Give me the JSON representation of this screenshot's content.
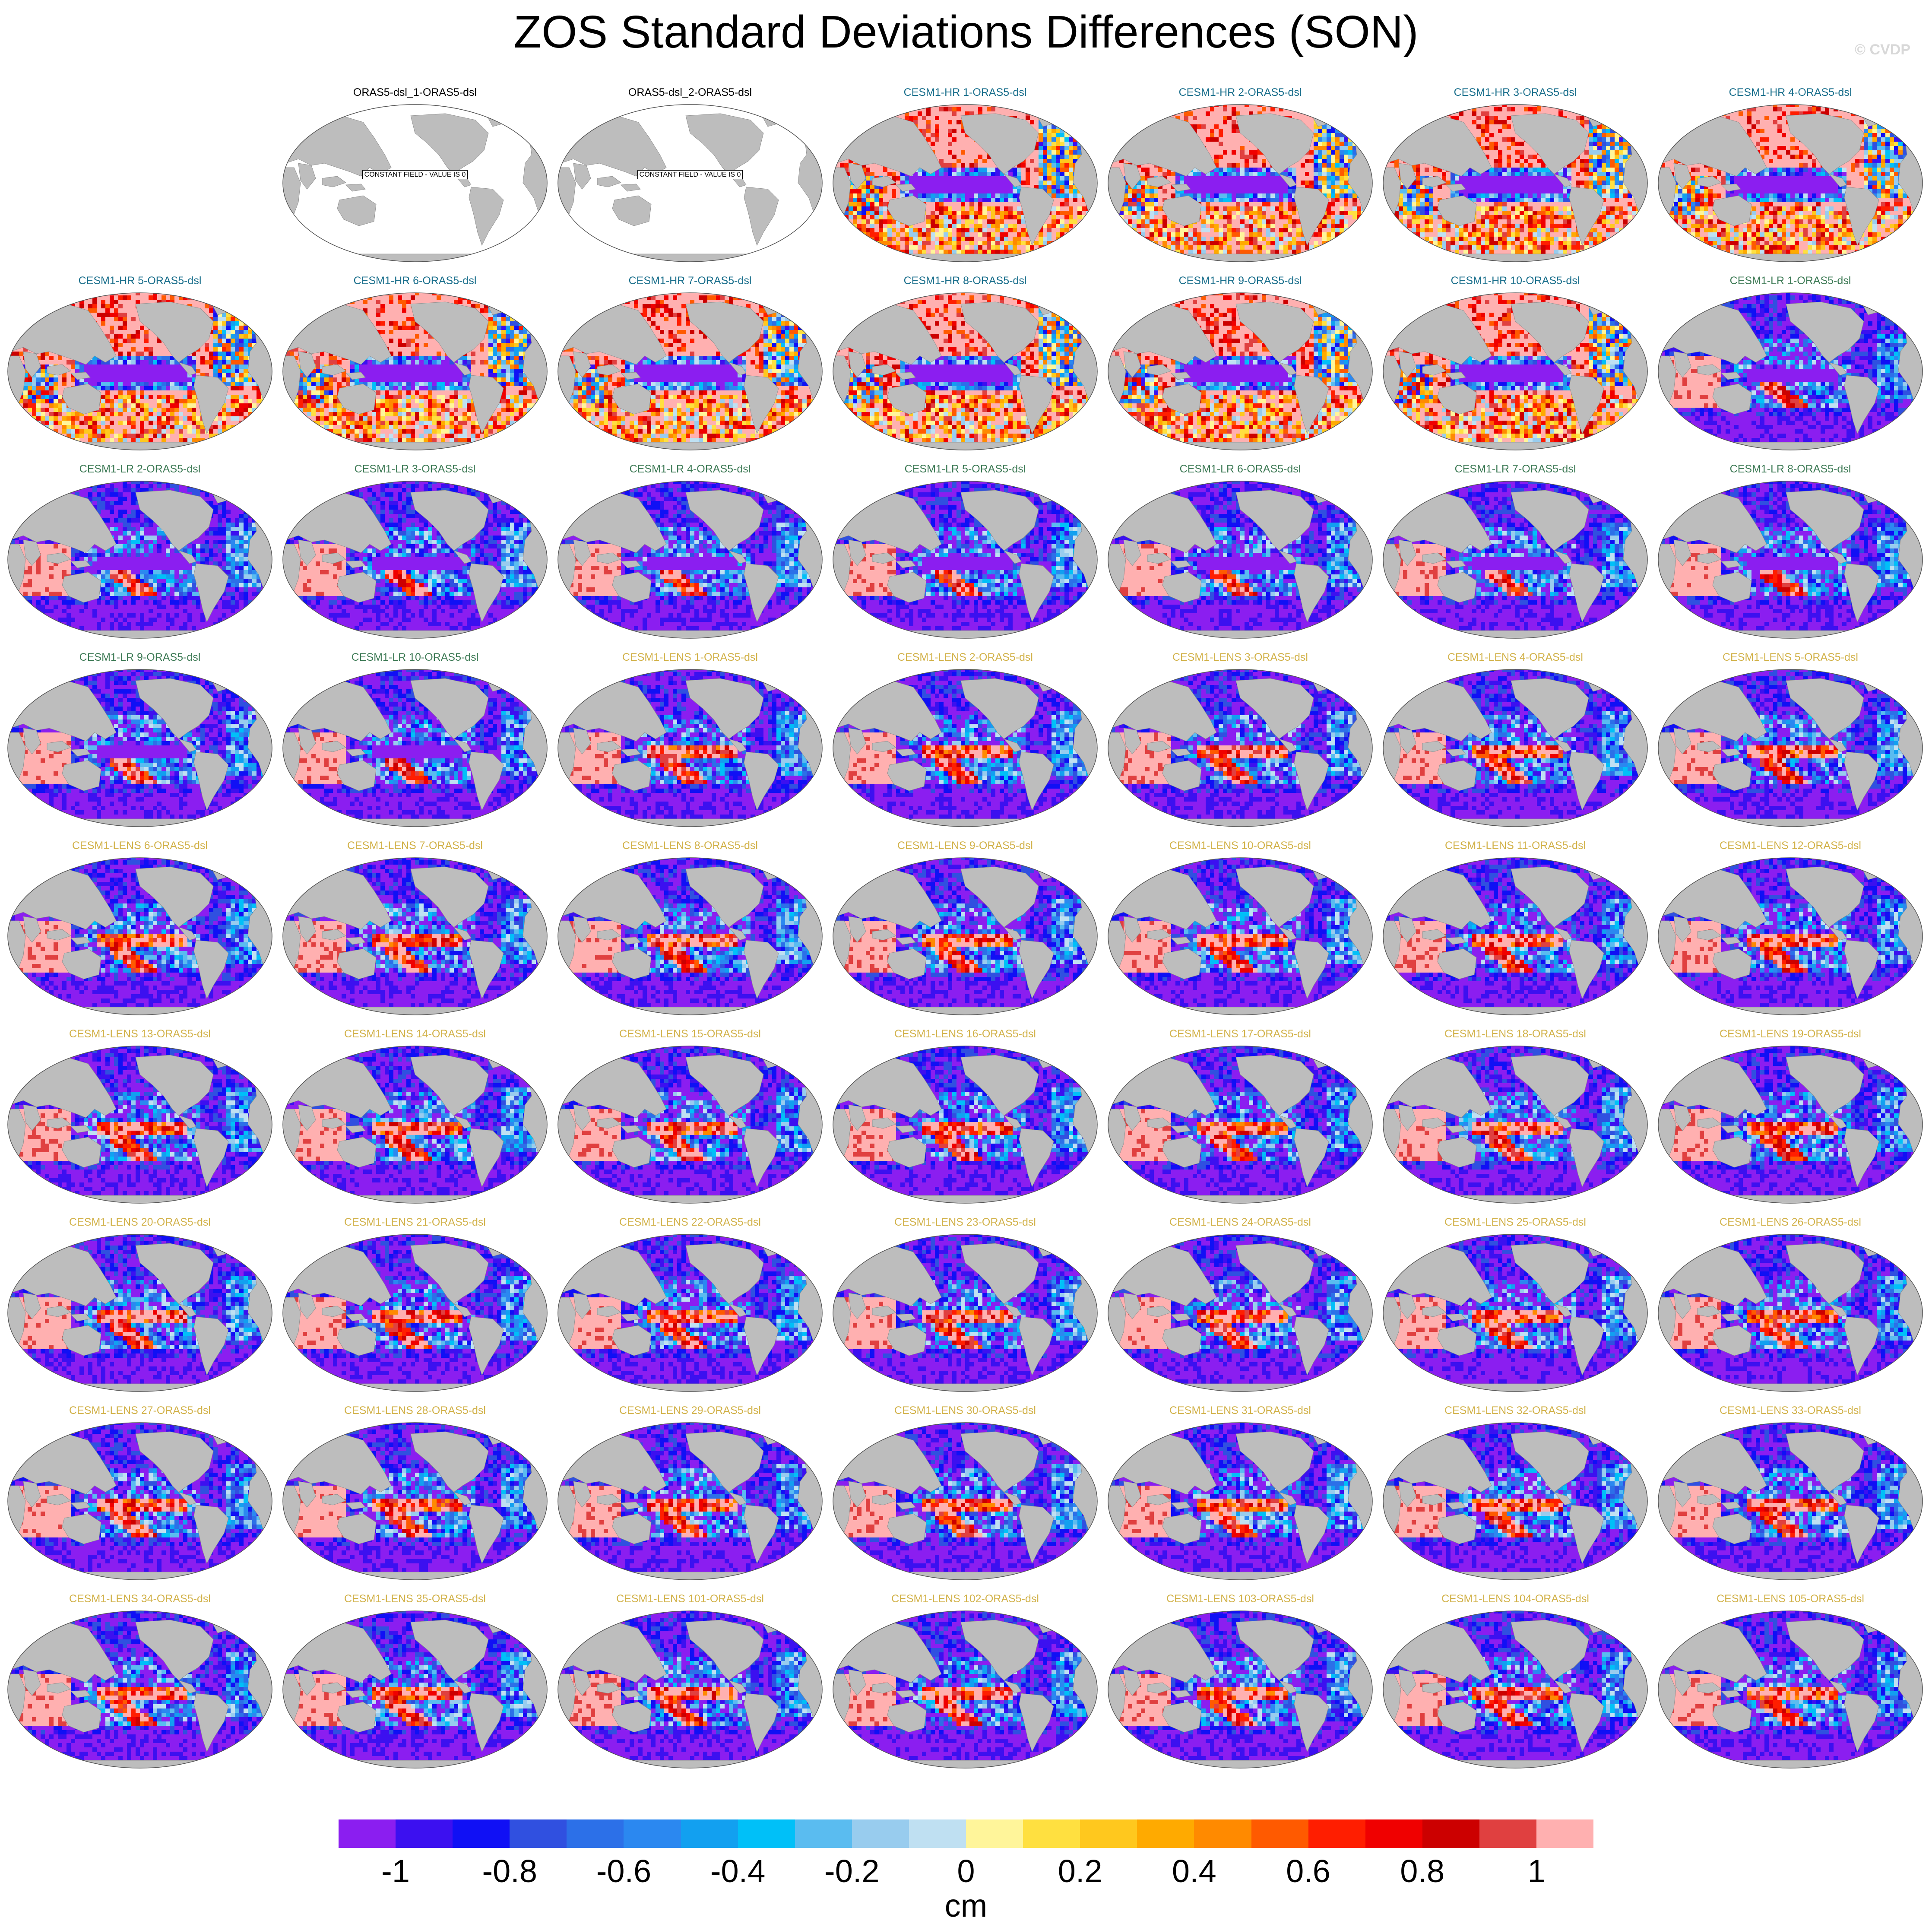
{
  "figure": {
    "title": "ZOS Standard Deviations Differences (SON)",
    "watermark": "© CVDP"
  },
  "colors": {
    "land": "#bdbdbd",
    "ocean_empty": "#ffffff",
    "title_obs": "#000000",
    "title_hr": "#1a6f8c",
    "title_lr": "#3d7a55",
    "title_lens": "#d2b24a"
  },
  "colorbar": {
    "unit": "cm",
    "tick_labels": [
      "-1",
      "-0.8",
      "-0.6",
      "-0.4",
      "-0.2",
      "0",
      "0.2",
      "0.4",
      "0.6",
      "0.8",
      "1"
    ],
    "tick_values": [
      -1,
      -0.8,
      -0.6,
      -0.4,
      -0.2,
      0,
      0.2,
      0.4,
      0.6,
      0.8,
      1
    ],
    "colors": [
      "#8b1ef0",
      "#3c10f0",
      "#1010f5",
      "#3050e0",
      "#2c70e8",
      "#2b88f0",
      "#12a0f0",
      "#00c0f8",
      "#5abcf0",
      "#98ccee",
      "#bfe0f2",
      "#fff59a",
      "#ffe040",
      "#ffc81e",
      "#ffaa00",
      "#ff8a00",
      "#ff5a00",
      "#ff1e00",
      "#f00000",
      "#cc0000",
      "#e04040",
      "#ffb0b0"
    ]
  },
  "panels": [
    {
      "title": "ORAS5-dsl_1-ORAS5-dsl",
      "group": "obs",
      "constant_label": "CONSTANT FIELD - VALUE IS 0"
    },
    {
      "title": "ORAS5-dsl_2-ORAS5-dsl",
      "group": "obs",
      "constant_label": "CONSTANT FIELD - VALUE IS 0"
    },
    {
      "title": "CESM1-HR 1-ORAS5-dsl",
      "group": "hr"
    },
    {
      "title": "CESM1-HR 2-ORAS5-dsl",
      "group": "hr"
    },
    {
      "title": "CESM1-HR 3-ORAS5-dsl",
      "group": "hr"
    },
    {
      "title": "CESM1-HR 4-ORAS5-dsl",
      "group": "hr"
    },
    {
      "title": "CESM1-HR 5-ORAS5-dsl",
      "group": "hr"
    },
    {
      "title": "CESM1-HR 6-ORAS5-dsl",
      "group": "hr"
    },
    {
      "title": "CESM1-HR 7-ORAS5-dsl",
      "group": "hr"
    },
    {
      "title": "CESM1-HR 8-ORAS5-dsl",
      "group": "hr"
    },
    {
      "title": "CESM1-HR 9-ORAS5-dsl",
      "group": "hr"
    },
    {
      "title": "CESM1-HR 10-ORAS5-dsl",
      "group": "hr"
    },
    {
      "title": "CESM1-LR 1-ORAS5-dsl",
      "group": "lr"
    },
    {
      "title": "CESM1-LR 2-ORAS5-dsl",
      "group": "lr"
    },
    {
      "title": "CESM1-LR 3-ORAS5-dsl",
      "group": "lr"
    },
    {
      "title": "CESM1-LR 4-ORAS5-dsl",
      "group": "lr"
    },
    {
      "title": "CESM1-LR 5-ORAS5-dsl",
      "group": "lr"
    },
    {
      "title": "CESM1-LR 6-ORAS5-dsl",
      "group": "lr"
    },
    {
      "title": "CESM1-LR 7-ORAS5-dsl",
      "group": "lr"
    },
    {
      "title": "CESM1-LR 8-ORAS5-dsl",
      "group": "lr"
    },
    {
      "title": "CESM1-LR 9-ORAS5-dsl",
      "group": "lr"
    },
    {
      "title": "CESM1-LR 10-ORAS5-dsl",
      "group": "lr"
    },
    {
      "title": "CESM1-LENS 1-ORAS5-dsl",
      "group": "lens"
    },
    {
      "title": "CESM1-LENS 2-ORAS5-dsl",
      "group": "lens"
    },
    {
      "title": "CESM1-LENS 3-ORAS5-dsl",
      "group": "lens"
    },
    {
      "title": "CESM1-LENS 4-ORAS5-dsl",
      "group": "lens"
    },
    {
      "title": "CESM1-LENS 5-ORAS5-dsl",
      "group": "lens"
    },
    {
      "title": "CESM1-LENS 6-ORAS5-dsl",
      "group": "lens"
    },
    {
      "title": "CESM1-LENS 7-ORAS5-dsl",
      "group": "lens"
    },
    {
      "title": "CESM1-LENS 8-ORAS5-dsl",
      "group": "lens"
    },
    {
      "title": "CESM1-LENS 9-ORAS5-dsl",
      "group": "lens"
    },
    {
      "title": "CESM1-LENS 10-ORAS5-dsl",
      "group": "lens"
    },
    {
      "title": "CESM1-LENS 11-ORAS5-dsl",
      "group": "lens"
    },
    {
      "title": "CESM1-LENS 12-ORAS5-dsl",
      "group": "lens"
    },
    {
      "title": "CESM1-LENS 13-ORAS5-dsl",
      "group": "lens"
    },
    {
      "title": "CESM1-LENS 14-ORAS5-dsl",
      "group": "lens"
    },
    {
      "title": "CESM1-LENS 15-ORAS5-dsl",
      "group": "lens"
    },
    {
      "title": "CESM1-LENS 16-ORAS5-dsl",
      "group": "lens"
    },
    {
      "title": "CESM1-LENS 17-ORAS5-dsl",
      "group": "lens"
    },
    {
      "title": "CESM1-LENS 18-ORAS5-dsl",
      "group": "lens"
    },
    {
      "title": "CESM1-LENS 19-ORAS5-dsl",
      "group": "lens"
    },
    {
      "title": "CESM1-LENS 20-ORAS5-dsl",
      "group": "lens"
    },
    {
      "title": "CESM1-LENS 21-ORAS5-dsl",
      "group": "lens"
    },
    {
      "title": "CESM1-LENS 22-ORAS5-dsl",
      "group": "lens"
    },
    {
      "title": "CESM1-LENS 23-ORAS5-dsl",
      "group": "lens"
    },
    {
      "title": "CESM1-LENS 24-ORAS5-dsl",
      "group": "lens"
    },
    {
      "title": "CESM1-LENS 25-ORAS5-dsl",
      "group": "lens"
    },
    {
      "title": "CESM1-LENS 26-ORAS5-dsl",
      "group": "lens"
    },
    {
      "title": "CESM1-LENS 27-ORAS5-dsl",
      "group": "lens"
    },
    {
      "title": "CESM1-LENS 28-ORAS5-dsl",
      "group": "lens"
    },
    {
      "title": "CESM1-LENS 29-ORAS5-dsl",
      "group": "lens"
    },
    {
      "title": "CESM1-LENS 30-ORAS5-dsl",
      "group": "lens"
    },
    {
      "title": "CESM1-LENS 31-ORAS5-dsl",
      "group": "lens"
    },
    {
      "title": "CESM1-LENS 32-ORAS5-dsl",
      "group": "lens"
    },
    {
      "title": "CESM1-LENS 33-ORAS5-dsl",
      "group": "lens"
    },
    {
      "title": "CESM1-LENS 34-ORAS5-dsl",
      "group": "lens"
    },
    {
      "title": "CESM1-LENS 35-ORAS5-dsl",
      "group": "lens"
    },
    {
      "title": "CESM1-LENS 101-ORAS5-dsl",
      "group": "lens"
    },
    {
      "title": "CESM1-LENS 102-ORAS5-dsl",
      "group": "lens"
    },
    {
      "title": "CESM1-LENS 103-ORAS5-dsl",
      "group": "lens"
    },
    {
      "title": "CESM1-LENS 104-ORAS5-dsl",
      "group": "lens"
    },
    {
      "title": "CESM1-LENS 105-ORAS5-dsl",
      "group": "lens"
    }
  ]
}
